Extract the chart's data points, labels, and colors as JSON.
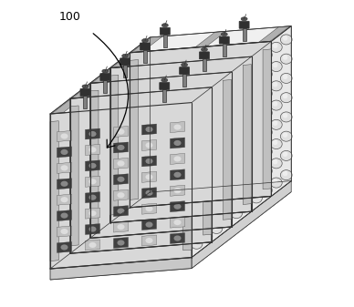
{
  "bg_color": "#ffffff",
  "lc": "#333333",
  "face_front": "#d8d8d8",
  "face_side": "#e8e8e8",
  "face_top": "#f0f0f0",
  "cell_color": "#e0e0e0",
  "cell_edge": "#555555",
  "checker_dark": "#404040",
  "checker_light": "#c0c0c0",
  "terminal_gray": "#808080",
  "terminal_dark": "#303030",
  "label": "100",
  "fig_width": 3.88,
  "fig_height": 3.37,
  "dpi": 100,
  "num_modules": 5,
  "cells_rows": 8,
  "cells_cols": 2,
  "checker_rows": 8,
  "checker_cols": 5
}
